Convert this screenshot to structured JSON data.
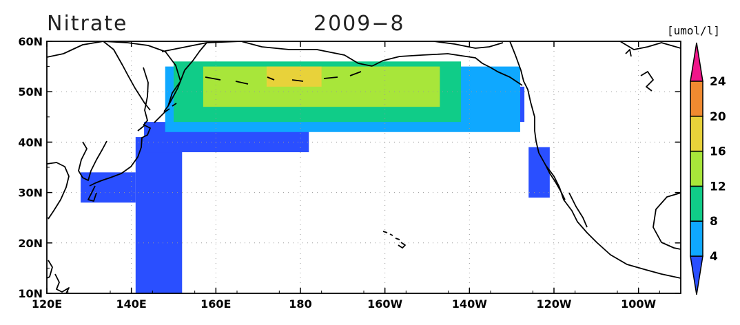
{
  "title": {
    "variable": "Nitrate",
    "date": "2009−8"
  },
  "units": "[umol/l]",
  "map": {
    "lon_range": [
      120,
      270
    ],
    "lat_range": [
      10,
      60
    ],
    "lon_ticks": [
      {
        "value": 120,
        "label": "120E"
      },
      {
        "value": 140,
        "label": "140E"
      },
      {
        "value": 160,
        "label": "160E"
      },
      {
        "value": 180,
        "label": "180"
      },
      {
        "value": 200,
        "label": "160W"
      },
      {
        "value": 220,
        "label": "140W"
      },
      {
        "value": 240,
        "label": "120W"
      },
      {
        "value": 260,
        "label": "100W"
      }
    ],
    "lat_ticks": [
      {
        "value": 10,
        "label": "10N"
      },
      {
        "value": 20,
        "label": "20N"
      },
      {
        "value": 30,
        "label": "30N"
      },
      {
        "value": 40,
        "label": "40N"
      },
      {
        "value": 50,
        "label": "50N"
      },
      {
        "value": 60,
        "label": "60N"
      }
    ],
    "grid": "dotted"
  },
  "colorbar": {
    "levels": [
      4,
      8,
      12,
      16,
      20,
      24
    ],
    "colors": [
      "#2a4fff",
      "#0fa8ff",
      "#10cc88",
      "#a8e63a",
      "#e8d23a",
      "#f08a30",
      "#f0168a"
    ],
    "extend": "both"
  },
  "chart_data": {
    "type": "heatmap",
    "variable": "Nitrate",
    "units": "umol/l",
    "period": "2009-8",
    "regions": [
      {
        "band": "<4",
        "color": "#2a4fff",
        "lon": [
          141,
          152
        ],
        "lat": [
          10,
          41
        ],
        "area": "Western Pacific, east of Japan/Philippines"
      },
      {
        "band": "<4",
        "color": "#2a4fff",
        "lon": [
          128,
          141
        ],
        "lat": [
          28,
          34
        ],
        "area": "East China Sea, south of Japan"
      },
      {
        "band": "<4",
        "color": "#2a4fff",
        "lon": [
          143,
          182
        ],
        "lat": [
          38,
          44
        ],
        "area": "North Pacific, south of 44N"
      },
      {
        "band": "<4",
        "color": "#2a4fff",
        "lon": [
          211,
          233
        ],
        "lat": [
          44,
          51
        ],
        "area": "Gulf of Alaska, southern part"
      },
      {
        "band": "<4",
        "color": "#2a4fff",
        "lon": [
          234,
          239
        ],
        "lat": [
          29,
          39
        ],
        "area": "California coast"
      },
      {
        "band": "4-8",
        "color": "#0fa8ff",
        "lon": [
          148,
          232
        ],
        "lat": [
          42,
          55
        ],
        "area": "Subarctic North Pacific edge"
      },
      {
        "band": "8-12",
        "color": "#10cc88",
        "lon": [
          150,
          218
        ],
        "lat": [
          44,
          56
        ],
        "area": "Subarctic North Pacific"
      },
      {
        "band": "12-16",
        "color": "#a8e63a",
        "lon": [
          157,
          213
        ],
        "lat": [
          47,
          55
        ],
        "area": "Central subarctic gyre"
      },
      {
        "band": "16-20",
        "color": "#e8d23a",
        "lon": [
          172,
          185
        ],
        "lat": [
          51,
          55
        ],
        "area": "Western subarctic, south of Aleutians"
      }
    ]
  }
}
